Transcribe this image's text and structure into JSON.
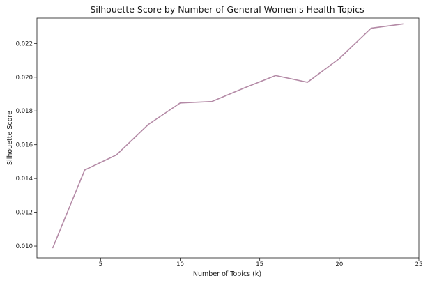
{
  "chart_data": {
    "type": "line",
    "title": "Silhouette Score by Number of General Women's Health Topics",
    "xlabel": "Number of Topics (k)",
    "ylabel": "Silhouette Score",
    "xlim": [
      1.0,
      25.0
    ],
    "ylim": [
      0.0093,
      0.0235
    ],
    "x_ticks": [
      5,
      10,
      15,
      20,
      25
    ],
    "x_tick_labels": [
      "5",
      "10",
      "15",
      "20",
      "25"
    ],
    "y_ticks": [
      0.01,
      0.012,
      0.014,
      0.016,
      0.018,
      0.02,
      0.022
    ],
    "y_tick_labels": [
      "0.010",
      "0.012",
      "0.014",
      "0.016",
      "0.018",
      "0.020",
      "0.022"
    ],
    "grid": false,
    "series": [
      {
        "color": "#b48aa6",
        "x": [
          2,
          4,
          6,
          8,
          10,
          12,
          14,
          16,
          18,
          20,
          22,
          24
        ],
        "y": [
          0.0099,
          0.0145,
          0.0154,
          0.0172,
          0.01847,
          0.01856,
          0.01935,
          0.0201,
          0.0197,
          0.0211,
          0.0229,
          0.02315
        ]
      }
    ]
  }
}
